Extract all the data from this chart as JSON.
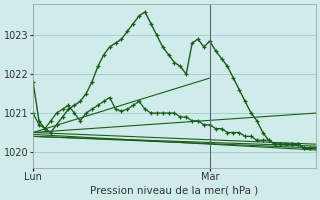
{
  "background_color": "#d0ecea",
  "grid_color": "#aacfcc",
  "line_color": "#1a5c1a",
  "title": "Pression niveau de la mer( hPa )",
  "ylim": [
    1019.6,
    1023.8
  ],
  "yticks": [
    1020,
    1021,
    1022,
    1023
  ],
  "xlim": [
    0,
    48
  ],
  "x_lun": 0,
  "x_mar": 30,
  "series_with_markers": [
    {
      "x": [
        0,
        1,
        2,
        3,
        4,
        5,
        6,
        7,
        8,
        9,
        10,
        11,
        12,
        13,
        14,
        15,
        16,
        17,
        18,
        19,
        20,
        21,
        22,
        23,
        24,
        25,
        26,
        27,
        28,
        29,
        30,
        31,
        32,
        33,
        34,
        35,
        36,
        37,
        38,
        39,
        40,
        41,
        42,
        43,
        44,
        45,
        46,
        47,
        48
      ],
      "y": [
        1021.8,
        1020.8,
        1020.6,
        1020.5,
        1020.7,
        1020.9,
        1021.1,
        1021.2,
        1021.3,
        1021.5,
        1021.8,
        1022.2,
        1022.5,
        1022.7,
        1022.8,
        1022.9,
        1023.1,
        1023.3,
        1023.5,
        1023.6,
        1023.3,
        1023.0,
        1022.7,
        1022.5,
        1022.3,
        1022.2,
        1022.0,
        1022.8,
        1022.9,
        1022.7,
        1022.85,
        1022.6,
        1022.4,
        1022.2,
        1021.9,
        1021.6,
        1021.3,
        1021.0,
        1020.8,
        1020.5,
        1020.3,
        1020.2,
        1020.2,
        1020.2,
        1020.2,
        1020.2,
        1020.1,
        1020.1,
        1020.1
      ]
    },
    {
      "x": [
        0,
        1,
        2,
        3,
        4,
        5,
        6,
        7,
        8,
        9,
        10,
        11,
        12,
        13,
        14,
        15,
        16,
        17,
        18,
        19,
        20,
        21,
        22,
        23,
        24,
        25,
        26,
        27,
        28,
        29,
        30,
        31,
        32,
        33,
        34,
        35,
        36,
        37,
        38,
        39,
        40,
        41,
        42,
        43,
        44,
        45,
        46,
        47,
        48
      ],
      "y": [
        1021.0,
        1020.7,
        1020.6,
        1020.8,
        1021.0,
        1021.1,
        1021.2,
        1021.0,
        1020.8,
        1021.0,
        1021.1,
        1021.2,
        1021.3,
        1021.4,
        1021.1,
        1021.05,
        1021.1,
        1021.2,
        1021.3,
        1021.1,
        1021.0,
        1021.0,
        1021.0,
        1021.0,
        1021.0,
        1020.9,
        1020.9,
        1020.8,
        1020.8,
        1020.7,
        1020.7,
        1020.6,
        1020.6,
        1020.5,
        1020.5,
        1020.5,
        1020.4,
        1020.4,
        1020.3,
        1020.3,
        1020.3,
        1020.2,
        1020.2,
        1020.2,
        1020.2,
        1020.2,
        1020.1,
        1020.1,
        1020.1
      ]
    }
  ],
  "series_straight": [
    {
      "x": [
        0,
        48
      ],
      "y": [
        1020.4,
        1020.15
      ]
    },
    {
      "x": [
        0,
        48
      ],
      "y": [
        1020.4,
        1020.1
      ]
    },
    {
      "x": [
        0,
        48
      ],
      "y": [
        1020.45,
        1020.05
      ]
    },
    {
      "x": [
        0,
        48
      ],
      "y": [
        1020.5,
        1020.2
      ]
    },
    {
      "x": [
        0,
        30
      ],
      "y": [
        1020.5,
        1021.9
      ]
    },
    {
      "x": [
        0,
        48
      ],
      "y": [
        1020.5,
        1021.0
      ]
    }
  ]
}
